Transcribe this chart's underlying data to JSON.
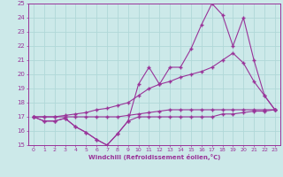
{
  "xlabel": "Windchill (Refroidissement éolien,°C)",
  "xlim": [
    -0.5,
    23.5
  ],
  "ylim": [
    15,
    25
  ],
  "yticks": [
    15,
    16,
    17,
    18,
    19,
    20,
    21,
    22,
    23,
    24,
    25
  ],
  "xticks": [
    0,
    1,
    2,
    3,
    4,
    5,
    6,
    7,
    8,
    9,
    10,
    11,
    12,
    13,
    14,
    15,
    16,
    17,
    18,
    19,
    20,
    21,
    22,
    23
  ],
  "bg_color": "#cce9e9",
  "line_color": "#993399",
  "grid_color": "#b0d8d8",
  "lines": [
    {
      "x": [
        0,
        1,
        2,
        3,
        4,
        5,
        6,
        7,
        8,
        9,
        10,
        11,
        12,
        13,
        14,
        15,
        16,
        17,
        18,
        19,
        20,
        21,
        22,
        23
      ],
      "y": [
        17.0,
        16.7,
        16.7,
        16.9,
        16.3,
        15.9,
        15.4,
        15.0,
        15.8,
        16.7,
        17.0,
        17.0,
        17.0,
        17.0,
        17.0,
        17.0,
        17.0,
        17.0,
        17.2,
        17.2,
        17.3,
        17.4,
        17.4,
        17.5
      ]
    },
    {
      "x": [
        0,
        1,
        2,
        3,
        4,
        5,
        6,
        7,
        8,
        9,
        10,
        11,
        12,
        13,
        14,
        15,
        16,
        17,
        18,
        19,
        20,
        21,
        22,
        23
      ],
      "y": [
        17.0,
        17.0,
        17.0,
        17.0,
        17.0,
        17.0,
        17.0,
        17.0,
        17.0,
        17.1,
        17.2,
        17.3,
        17.4,
        17.5,
        17.5,
        17.5,
        17.5,
        17.5,
        17.5,
        17.5,
        17.5,
        17.5,
        17.5,
        17.5
      ]
    },
    {
      "x": [
        0,
        1,
        2,
        3,
        4,
        5,
        6,
        7,
        8,
        9,
        10,
        11,
        12,
        13,
        14,
        15,
        16,
        17,
        18,
        19,
        20,
        21,
        22,
        23
      ],
      "y": [
        17.0,
        17.0,
        17.0,
        17.1,
        17.2,
        17.3,
        17.5,
        17.6,
        17.8,
        18.0,
        18.5,
        19.0,
        19.3,
        19.5,
        19.8,
        20.0,
        20.2,
        20.5,
        21.0,
        21.5,
        20.8,
        19.5,
        18.5,
        17.5
      ]
    },
    {
      "x": [
        0,
        1,
        2,
        3,
        4,
        5,
        6,
        7,
        8,
        9,
        10,
        11,
        12,
        13,
        14,
        15,
        16,
        17,
        18,
        19,
        20,
        21,
        22,
        23
      ],
      "y": [
        17.0,
        16.7,
        16.7,
        16.9,
        16.3,
        15.9,
        15.4,
        15.0,
        15.8,
        16.7,
        19.3,
        20.5,
        19.3,
        20.5,
        20.5,
        21.8,
        23.5,
        25.0,
        24.2,
        22.0,
        24.0,
        21.0,
        18.5,
        17.5
      ]
    }
  ]
}
